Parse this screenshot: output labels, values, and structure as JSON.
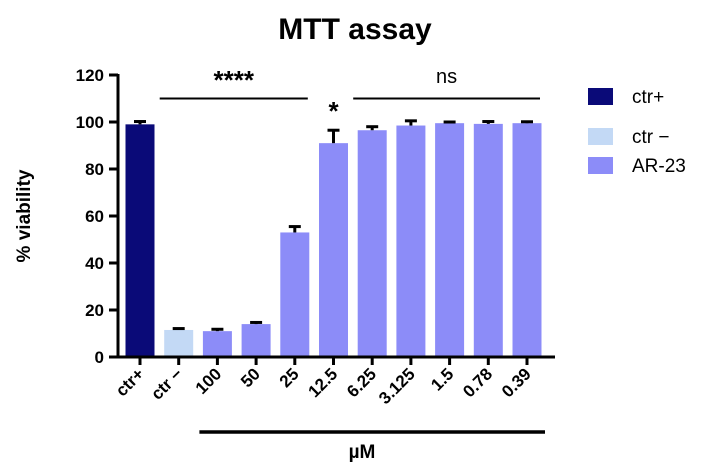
{
  "chart_data": {
    "type": "bar",
    "title": "MTT assay",
    "xlabel": "µM",
    "ylabel": "% viability",
    "ylim": [
      0,
      120
    ],
    "yticks": [
      0,
      20,
      40,
      60,
      80,
      100,
      120
    ],
    "grid": false,
    "legend_position": "right",
    "categories": [
      "ctr+",
      "ctr −",
      "100",
      "50",
      "25",
      "12.5",
      "6.25",
      "3.125",
      "1.5",
      "0.78",
      "0.39"
    ],
    "bars": [
      {
        "category": "ctr+",
        "group": "ctr+",
        "value": 99,
        "error": 1.2
      },
      {
        "category": "ctr −",
        "group": "ctr −",
        "value": 11.5,
        "error": 0.6
      },
      {
        "category": "100",
        "group": "AR-23",
        "value": 11,
        "error": 0.8
      },
      {
        "category": "50",
        "group": "AR-23",
        "value": 14,
        "error": 0.7
      },
      {
        "category": "25",
        "group": "AR-23",
        "value": 53,
        "error": 2.5
      },
      {
        "category": "12.5",
        "group": "AR-23",
        "value": 91,
        "error": 5.5
      },
      {
        "category": "6.25",
        "group": "AR-23",
        "value": 96.5,
        "error": 1.5
      },
      {
        "category": "3.125",
        "group": "AR-23",
        "value": 98.5,
        "error": 2.0
      },
      {
        "category": "1.5",
        "group": "AR-23",
        "value": 99.5,
        "error": 0.5
      },
      {
        "category": "0.78",
        "group": "AR-23",
        "value": 99.2,
        "error": 1.0
      },
      {
        "category": "0.39",
        "group": "AR-23",
        "value": 99.5,
        "error": 0.6
      }
    ],
    "legend": [
      {
        "name": "ctr+",
        "color": "#0a0a78"
      },
      {
        "name": "ctr −",
        "color": "#c3d9f5"
      },
      {
        "name": "AR-23",
        "color": "#8c8cf8"
      }
    ],
    "annotations": [
      {
        "text": "****",
        "from": "ctr −",
        "to": "25"
      },
      {
        "text": "*",
        "at": "12.5"
      },
      {
        "text": "ns",
        "from": "6.25",
        "to": "0.39"
      }
    ],
    "group_bracket": {
      "from": "100",
      "to": "0.39"
    }
  }
}
